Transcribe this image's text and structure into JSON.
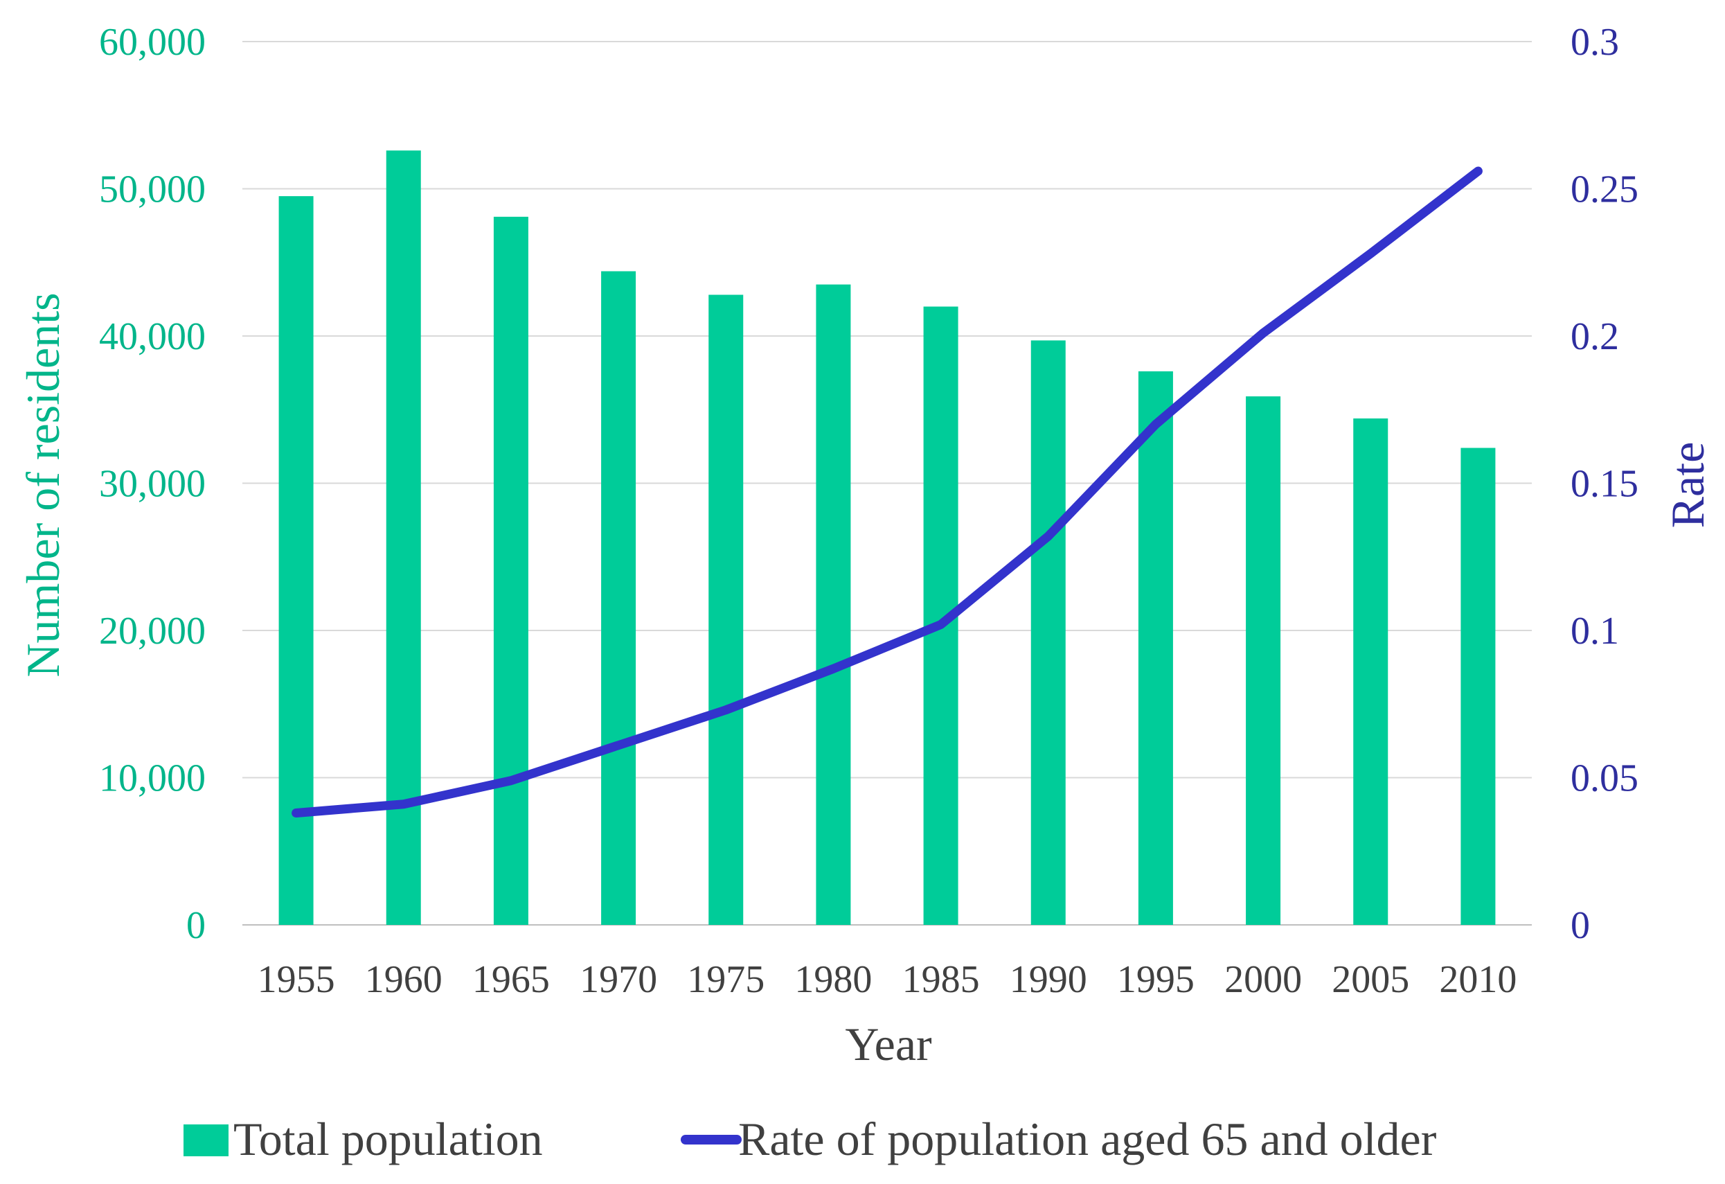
{
  "chart_data": {
    "type": "bar+line",
    "categories": [
      "1955",
      "1960",
      "1965",
      "1970",
      "1975",
      "1980",
      "1985",
      "1990",
      "1995",
      "2000",
      "2005",
      "2010"
    ],
    "series": [
      {
        "name": "Total population",
        "type": "bar",
        "axis": "left",
        "color": "#00CC99",
        "values": [
          49500,
          52600,
          48100,
          44400,
          42800,
          43500,
          42000,
          39700,
          37600,
          35900,
          34400,
          32400
        ]
      },
      {
        "name": "Rate of population aged 65 and older",
        "type": "line",
        "axis": "right",
        "color": "#3333CC",
        "values": [
          0.038,
          0.041,
          0.049,
          0.061,
          0.073,
          0.087,
          0.102,
          0.132,
          0.17,
          0.201,
          0.228,
          0.256
        ]
      }
    ],
    "xlabel": "Year",
    "ylabel_left": "Number of residents",
    "ylabel_right": "Rate",
    "ylim_left": [
      0,
      60000
    ],
    "ylim_right": [
      0,
      0.3
    ],
    "yticks_left": [
      "0",
      "10,000",
      "20,000",
      "30,000",
      "40,000",
      "50,000",
      "60,000"
    ],
    "yticks_right": [
      "0",
      "0.05",
      "0.1",
      "0.15",
      "0.2",
      "0.25",
      "0.3"
    ],
    "grid": true,
    "legend_position": "bottom"
  }
}
